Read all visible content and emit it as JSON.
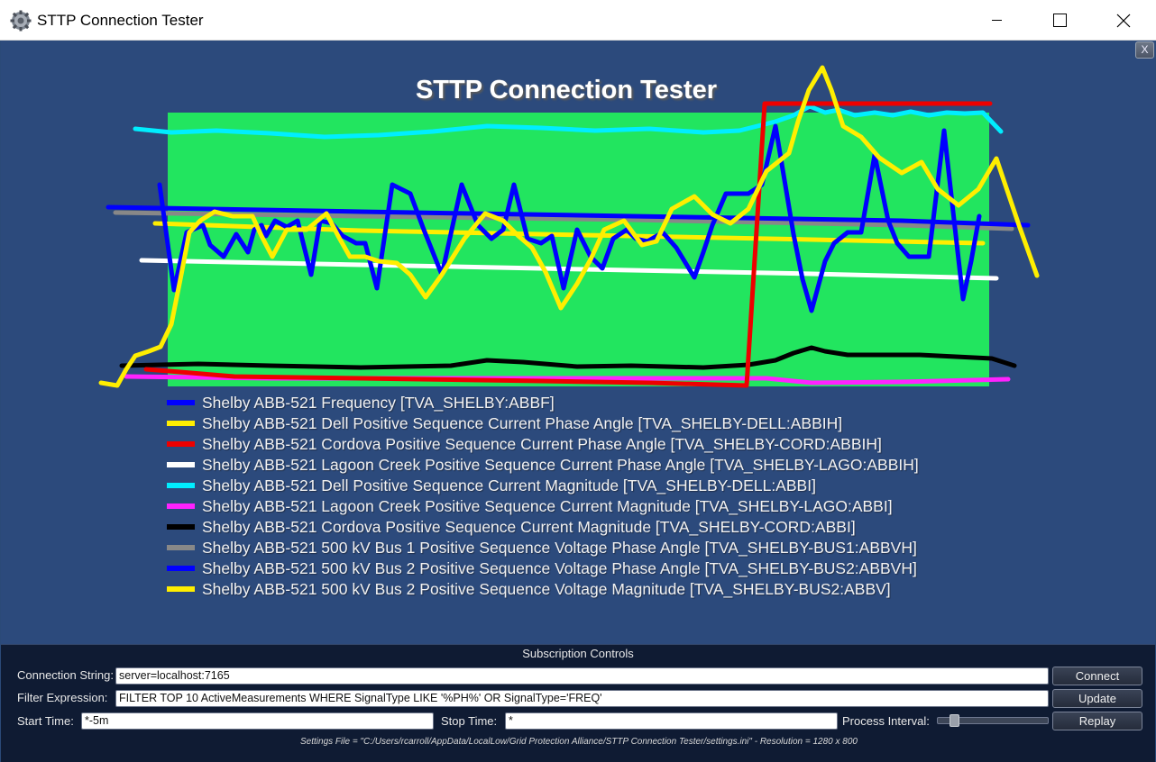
{
  "window": {
    "title": "STTP Connection Tester",
    "icon": "gear-icon"
  },
  "chart_data": {
    "type": "line",
    "title": "STTP Connection Tester",
    "background_color": "#22e55f",
    "grid": false,
    "legend_position": "bottom",
    "series": [
      {
        "name": "Shelby ABB-521 Frequency [TVA_SHELBY:ABBF]",
        "color": "#0000ff",
        "points": [
          [
            177,
            205
          ],
          [
            193,
            322
          ],
          [
            207,
            258
          ],
          [
            225,
            250
          ],
          [
            233,
            272
          ],
          [
            248,
            285
          ],
          [
            262,
            260
          ],
          [
            275,
            280
          ],
          [
            282,
            255
          ],
          [
            290,
            250
          ],
          [
            295,
            262
          ],
          [
            305,
            245
          ],
          [
            318,
            252
          ],
          [
            330,
            245
          ],
          [
            345,
            305
          ],
          [
            355,
            245
          ],
          [
            368,
            248
          ],
          [
            380,
            262
          ],
          [
            395,
            270
          ],
          [
            405,
            270
          ],
          [
            418,
            320
          ],
          [
            435,
            205
          ],
          [
            455,
            215
          ],
          [
            470,
            255
          ],
          [
            490,
            305
          ],
          [
            512,
            205
          ],
          [
            530,
            250
          ],
          [
            545,
            265
          ],
          [
            558,
            255
          ],
          [
            570,
            205
          ],
          [
            585,
            265
          ],
          [
            600,
            270
          ],
          [
            612,
            262
          ],
          [
            625,
            320
          ],
          [
            640,
            255
          ],
          [
            655,
            285
          ],
          [
            668,
            298
          ],
          [
            680,
            265
          ],
          [
            695,
            255
          ],
          [
            705,
            265
          ],
          [
            718,
            268
          ],
          [
            735,
            258
          ],
          [
            750,
            275
          ],
          [
            770,
            308
          ],
          [
            780,
            280
          ],
          [
            790,
            250
          ],
          [
            805,
            215
          ],
          [
            830,
            215
          ],
          [
            845,
            205
          ],
          [
            860,
            140
          ],
          [
            870,
            200
          ],
          [
            880,
            260
          ],
          [
            890,
            310
          ],
          [
            900,
            345
          ],
          [
            915,
            290
          ],
          [
            925,
            270
          ],
          [
            940,
            258
          ],
          [
            955,
            258
          ],
          [
            970,
            172
          ],
          [
            985,
            245
          ],
          [
            995,
            270
          ],
          [
            1008,
            285
          ],
          [
            1018,
            285
          ],
          [
            1030,
            285
          ],
          [
            1047,
            145
          ],
          [
            1057,
            235
          ],
          [
            1068,
            332
          ],
          [
            1077,
            290
          ],
          [
            1086,
            240
          ]
        ]
      },
      {
        "name": "Shelby ABB-521 Dell Positive Sequence Current Phase Angle [TVA_SHELBY-DELL:ABBIH]",
        "color": "#ffee00",
        "points": [
          [
            112,
            425
          ],
          [
            130,
            428
          ],
          [
            140,
            410
          ],
          [
            150,
            395
          ],
          [
            165,
            390
          ],
          [
            178,
            385
          ],
          [
            190,
            360
          ],
          [
            200,
            310
          ],
          [
            210,
            258
          ],
          [
            222,
            245
          ],
          [
            238,
            235
          ],
          [
            258,
            240
          ],
          [
            280,
            240
          ],
          [
            290,
            262
          ],
          [
            302,
            285
          ],
          [
            318,
            255
          ],
          [
            340,
            255
          ],
          [
            362,
            237
          ],
          [
            375,
            262
          ],
          [
            388,
            285
          ],
          [
            405,
            285
          ],
          [
            420,
            290
          ],
          [
            440,
            292
          ],
          [
            455,
            305
          ],
          [
            472,
            330
          ],
          [
            490,
            305
          ],
          [
            515,
            265
          ],
          [
            538,
            237
          ],
          [
            558,
            245
          ],
          [
            575,
            262
          ],
          [
            590,
            275
          ],
          [
            605,
            302
          ],
          [
            622,
            342
          ],
          [
            640,
            315
          ],
          [
            655,
            288
          ],
          [
            670,
            255
          ],
          [
            692,
            245
          ],
          [
            712,
            272
          ],
          [
            728,
            268
          ],
          [
            745,
            232
          ],
          [
            770,
            218
          ],
          [
            790,
            238
          ],
          [
            810,
            248
          ],
          [
            830,
            232
          ],
          [
            850,
            190
          ],
          [
            875,
            170
          ],
          [
            885,
            135
          ],
          [
            897,
            100
          ],
          [
            912,
            75
          ],
          [
            922,
            100
          ],
          [
            935,
            140
          ],
          [
            955,
            152
          ],
          [
            975,
            175
          ],
          [
            1000,
            192
          ],
          [
            1022,
            180
          ],
          [
            1040,
            210
          ],
          [
            1063,
            228
          ],
          [
            1085,
            210
          ],
          [
            1105,
            176
          ],
          [
            1130,
            250
          ],
          [
            1150,
            306
          ]
        ]
      },
      {
        "name": "Shelby ABB-521 Cordova Positive Sequence Current Phase Angle [TVA_SHELBY-CORD:ABBIH]",
        "color": "#ee0000",
        "points": [
          [
            162,
            410
          ],
          [
            200,
            413
          ],
          [
            260,
            418
          ],
          [
            400,
            420
          ],
          [
            600,
            423
          ],
          [
            720,
            425
          ],
          [
            828,
            428
          ],
          [
            848,
            115
          ],
          [
            1098,
            115
          ]
        ]
      },
      {
        "name": "Shelby ABB-521 Lagoon Creek Positive Sequence Current Phase Angle [TVA_SHELBY-LAGO:ABBIH]",
        "color": "#ffffff",
        "points": [
          [
            157,
            289
          ],
          [
            400,
            294
          ],
          [
            700,
            300
          ],
          [
            900,
            304
          ],
          [
            1105,
            309
          ]
        ]
      },
      {
        "name": "Shelby ABB-521 Dell Positive Sequence Current Magnitude [TVA_SHELBY-DELL:ABBI]",
        "color": "#00eeff",
        "points": [
          [
            150,
            143
          ],
          [
            190,
            147
          ],
          [
            240,
            145
          ],
          [
            300,
            148
          ],
          [
            360,
            152
          ],
          [
            420,
            150
          ],
          [
            480,
            146
          ],
          [
            540,
            140
          ],
          [
            600,
            142
          ],
          [
            660,
            145
          ],
          [
            720,
            143
          ],
          [
            780,
            147
          ],
          [
            820,
            145
          ],
          [
            860,
            135
          ],
          [
            880,
            128
          ],
          [
            898,
            118
          ],
          [
            915,
            125
          ],
          [
            930,
            122
          ],
          [
            948,
            128
          ],
          [
            970,
            125
          ],
          [
            990,
            128
          ],
          [
            1010,
            124
          ],
          [
            1030,
            128
          ],
          [
            1050,
            125
          ],
          [
            1070,
            126
          ],
          [
            1090,
            125
          ],
          [
            1110,
            146
          ]
        ]
      },
      {
        "name": "Shelby ABB-521 Lagoon Creek Positive Sequence Current Magnitude [TVA_SHELBY-LAGO:ABBI]",
        "color": "#ff22ff",
        "points": [
          [
            140,
            418
          ],
          [
            300,
            420
          ],
          [
            500,
            420
          ],
          [
            700,
            420
          ],
          [
            850,
            420
          ],
          [
            900,
            425
          ],
          [
            1000,
            424
          ],
          [
            1118,
            421
          ]
        ]
      },
      {
        "name": "Shelby ABB-521 Cordova Positive Sequence Current Magnitude [TVA_SHELBY-CORD:ABBI]",
        "color": "#000000",
        "points": [
          [
            135,
            406
          ],
          [
            220,
            404
          ],
          [
            300,
            406
          ],
          [
            400,
            408
          ],
          [
            500,
            406
          ],
          [
            540,
            400
          ],
          [
            580,
            402
          ],
          [
            640,
            407
          ],
          [
            700,
            406
          ],
          [
            780,
            408
          ],
          [
            830,
            405
          ],
          [
            860,
            400
          ],
          [
            880,
            392
          ],
          [
            900,
            386
          ],
          [
            915,
            390
          ],
          [
            940,
            394
          ],
          [
            980,
            394
          ],
          [
            1020,
            394
          ],
          [
            1060,
            396
          ],
          [
            1100,
            398
          ],
          [
            1125,
            406
          ]
        ]
      },
      {
        "name": "Shelby ABB-521 500 kV Bus 1 Positive Sequence Voltage Phase Angle [TVA_SHELBY-BUS1:ABBVH]",
        "color": "#888888",
        "points": [
          [
            128,
            236
          ],
          [
            400,
            240
          ],
          [
            700,
            244
          ],
          [
            1000,
            250
          ],
          [
            1122,
            254
          ]
        ]
      },
      {
        "name": "Shelby ABB-521 500 kV Bus 2 Positive Sequence Voltage Phase Angle [TVA_SHELBY-BUS2:ABBVH]",
        "color": "#0000ff",
        "points": [
          [
            120,
            230
          ],
          [
            400,
            235
          ],
          [
            700,
            240
          ],
          [
            1000,
            245
          ],
          [
            1140,
            250
          ]
        ]
      },
      {
        "name": "Shelby ABB-521 500 kV Bus 2 Positive Sequence Voltage Magnitude [TVA_SHELBY-BUS2:ABBV]",
        "color": "#ffee00",
        "points": [
          [
            172,
            248
          ],
          [
            400,
            256
          ],
          [
            700,
            262
          ],
          [
            900,
            266
          ],
          [
            1090,
            270
          ]
        ]
      }
    ]
  },
  "close_overlay_label": "X",
  "controls": {
    "heading": "Subscription Controls",
    "connection_label": "Connection String:",
    "connection_value": "server=localhost:7165",
    "connect_label": "Connect",
    "filter_label": "Filter Expression:",
    "filter_value": "FILTER TOP 10 ActiveMeasurements WHERE SignalType LIKE '%PH%' OR SignalType='FREQ'",
    "update_label": "Update",
    "start_label": "Start Time:",
    "start_value": "*-5m",
    "stop_label": "Stop Time:",
    "stop_value": "*",
    "interval_label": "Process Interval:",
    "interval_level": 0.12,
    "replay_label": "Replay",
    "settings_text": "Settings File = \"C:/Users/rcarroll/AppData/LocalLow/Grid Protection Alliance/STTP Connection Tester/settings.ini\" - Resolution = 1280 x 800"
  }
}
